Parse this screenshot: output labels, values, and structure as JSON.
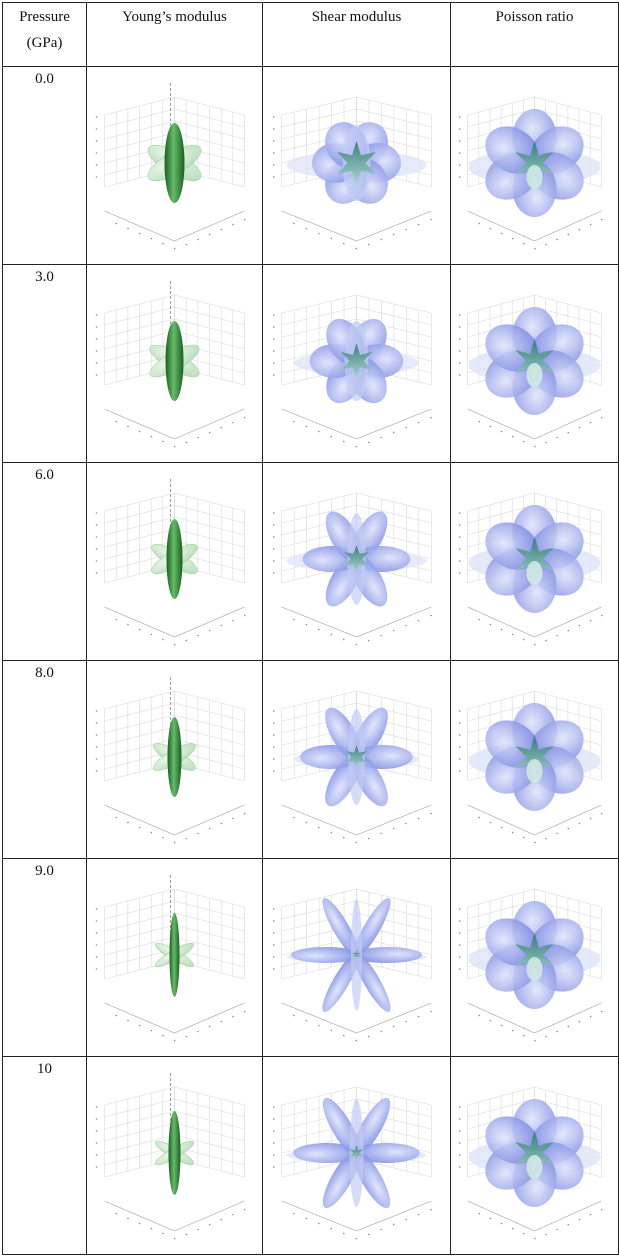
{
  "table": {
    "headers": {
      "pressure_line1": "Pressure",
      "pressure_line2": "(GPa)",
      "young": "Young’s modulus",
      "shear": "Shear modulus",
      "poisson": "Poisson ratio"
    },
    "rows": [
      {
        "pressure": "0.0"
      },
      {
        "pressure": "3.0"
      },
      {
        "pressure": "6.0"
      },
      {
        "pressure": "8.0"
      },
      {
        "pressure": "9.0"
      },
      {
        "pressure": "10"
      }
    ]
  },
  "colors": {
    "young_fill": "#b9ddb9",
    "young_core": "#2e7d32",
    "shear_fill": "#6f7fe0",
    "shear_light": "#dde3f8",
    "poisson_fill": "#6a78dc",
    "star_fill": "#3f8f88"
  },
  "figure_kind": {
    "young": "young",
    "shear": "shear",
    "poisson": "poisson"
  }
}
